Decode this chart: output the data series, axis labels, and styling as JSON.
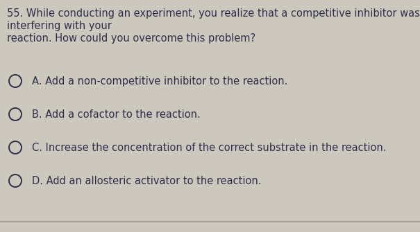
{
  "background_color": "#cdc8be",
  "question_number": "55.",
  "question_line1": "While conducting an experiment, you realize that a competitive inhibitor was",
  "question_line2": "interfering with your",
  "question_line3": "reaction. How could you overcome this problem?",
  "options": [
    "A. Add a non-competitive inhibitor to the reaction.",
    "B. Add a cofactor to the reaction.",
    "C. Increase the concentration of the correct substrate in the reaction.",
    "D. Add an allosteric activator to the reaction."
  ],
  "text_color": "#2d2d4a",
  "circle_color": "#2d2d4a",
  "question_fontsize": 10.5,
  "option_fontsize": 10.5,
  "fig_width": 6.05,
  "fig_height": 3.35,
  "dpi": 100
}
